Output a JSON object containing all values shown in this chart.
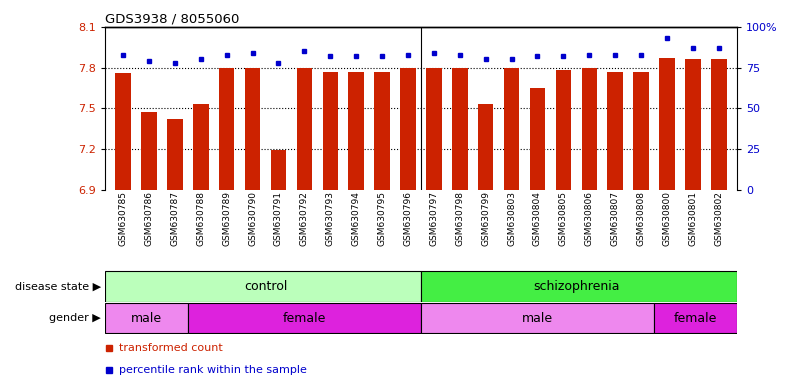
{
  "title": "GDS3938 / 8055060",
  "samples": [
    "GSM630785",
    "GSM630786",
    "GSM630787",
    "GSM630788",
    "GSM630789",
    "GSM630790",
    "GSM630791",
    "GSM630792",
    "GSM630793",
    "GSM630794",
    "GSM630795",
    "GSM630796",
    "GSM630797",
    "GSM630798",
    "GSM630799",
    "GSM630803",
    "GSM630804",
    "GSM630805",
    "GSM630806",
    "GSM630807",
    "GSM630808",
    "GSM630800",
    "GSM630801",
    "GSM630802"
  ],
  "bar_values": [
    7.76,
    7.47,
    7.42,
    7.53,
    7.8,
    7.8,
    7.19,
    7.8,
    7.77,
    7.77,
    7.77,
    7.8,
    7.8,
    7.8,
    7.53,
    7.8,
    7.65,
    7.78,
    7.8,
    7.77,
    7.77,
    7.87,
    7.86,
    7.86
  ],
  "percentile_values": [
    83,
    79,
    78,
    80,
    83,
    84,
    78,
    85,
    82,
    82,
    82,
    83,
    84,
    83,
    80,
    80,
    82,
    82,
    83,
    83,
    83,
    93,
    87,
    87
  ],
  "ylim_left": [
    6.9,
    8.1
  ],
  "ylim_right": [
    0,
    100
  ],
  "yticks_left": [
    6.9,
    7.2,
    7.5,
    7.8,
    8.1
  ],
  "yticks_right": [
    0,
    25,
    50,
    75,
    100
  ],
  "ytick_labels_right": [
    "0",
    "25",
    "50",
    "75",
    "100%"
  ],
  "bar_color": "#cc2200",
  "dot_color": "#0000cc",
  "control_color": "#bbffbb",
  "schizophrenia_color": "#44ee44",
  "male_color_light": "#ee88ee",
  "male_color_dark": "#cc44cc",
  "female_color": "#ee22ee",
  "n_samples": 24,
  "bar_bottom": 6.9,
  "gender_groups": [
    {
      "label": "male",
      "start": 0,
      "end": 3,
      "dark": false
    },
    {
      "label": "female",
      "start": 3,
      "end": 12,
      "dark": true
    },
    {
      "label": "male",
      "start": 12,
      "end": 21,
      "dark": false
    },
    {
      "label": "female",
      "start": 21,
      "end": 24,
      "dark": true
    }
  ]
}
